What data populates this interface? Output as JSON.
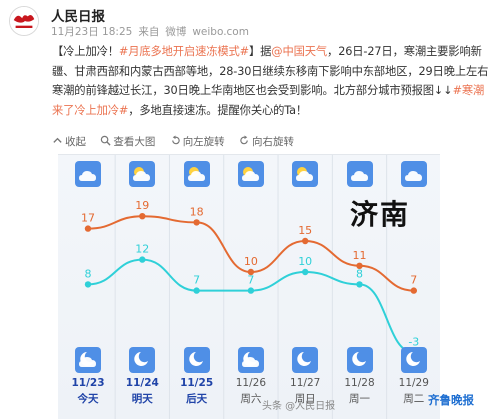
{
  "post": {
    "author": "人民日报",
    "time": "11月23日 18:25",
    "source": "来自",
    "source_name": "微博",
    "site": "weibo.com",
    "text_prefix": "【冷上加冷！",
    "hashtag1": "#月底多地开启速冻模式#",
    "text_mid1": "】据",
    "mention": "@中国天气",
    "text_body": "，26日-27日，寒潮主要影响新疆、甘肃西部和内蒙古西部等地，28-30日继续东移南下影响中东部地区，29日晚上左右寒潮的前锋越过长江，30日晚上华南地区也会受到影响。北方部分城市预报图↓↓",
    "hashtag2": "#寒潮来了冷上加冷#",
    "text_end": "，多地直接速冻。提醒你关心的Ta！"
  },
  "toolbar": {
    "collapse": "收起",
    "view_large": "查看大图",
    "rotate_left": "向左旋转",
    "rotate_right": "向右旋转"
  },
  "forecast": {
    "city": "济南",
    "dates": [
      "11/23",
      "11/24",
      "11/25",
      "11/26",
      "11/27",
      "11/28",
      "11/29"
    ],
    "weekdays": [
      "今天",
      "明天",
      "后天",
      "周六",
      "周日",
      "周一",
      "周二"
    ],
    "highlight_days": 3,
    "day_icons": [
      "cloudy-icon",
      "sun-cloud-icon",
      "sun-cloud-icon",
      "sun-cloud-icon",
      "sun-cloud-icon",
      "cloud-icon",
      "cloud-icon"
    ],
    "night_icons": [
      "moon-cloud-icon",
      "moon-icon",
      "moon-icon",
      "moon-cloud-icon",
      "moon-icon",
      "moon-icon",
      "moon-icon"
    ],
    "high_color": "#e46a32",
    "low_color": "#2fd0d8"
  },
  "chart_data": {
    "type": "line",
    "categories": [
      "11/23",
      "11/24",
      "11/25",
      "11/26",
      "11/27",
      "11/28",
      "11/29"
    ],
    "series": [
      {
        "values": [
          17,
          19,
          18,
          10,
          15,
          11,
          7
        ]
      },
      {
        "values": [
          8,
          12,
          7,
          7,
          10,
          8,
          -3
        ]
      }
    ]
  },
  "watermark": {
    "left": "头条 @人民日报",
    "right": "齐鲁晚报"
  }
}
